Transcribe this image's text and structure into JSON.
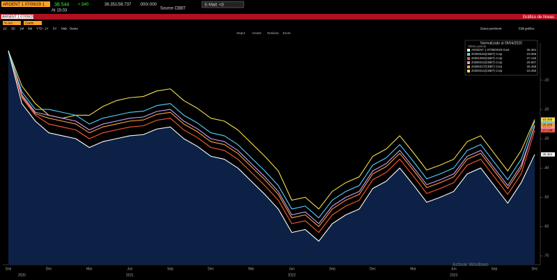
{
  "header": {
    "security": "ARGENT 1 07/09/29 1",
    "last": "38.544",
    "change": "+.540",
    "bid_ask": "38.351/38.737",
    "other": ".000/.000",
    "source": "Source CBBT",
    "time": "At 15:03",
    "email": "E-Mail: <3"
  },
  "title_bar": {
    "security": "ARGENT 1 07/09/29",
    "chart_kind": "Gráfico de líneas"
  },
  "toolbar": {
    "buttons": [
      "% Acc",
      "Camb"
    ],
    "periods": [
      "1D",
      "3D",
      "1M",
      "6M",
      "YTD",
      "1Y",
      "5Y",
      "Máx",
      "Diaria"
    ],
    "right": [
      "Datos pertinent",
      "Edit gráfico"
    ]
  },
  "chart_tools": [
    "Depur",
    "Anotar",
    "Noticias",
    "Zoom"
  ],
  "chart_data": {
    "type": "line",
    "legend_title": "Normalizado al 09/04/2020",
    "legend_subtitle": "Último precio",
    "categories": [
      "Sep",
      null,
      null,
      "Dec",
      null,
      null,
      "Mar",
      null,
      null,
      "Jun",
      null,
      null,
      "Sep",
      null,
      null,
      "Dec",
      null,
      null,
      "Mar",
      null,
      null,
      "Jun",
      null,
      null,
      "Sep",
      null,
      null,
      "Dec",
      null,
      null,
      "Mar",
      null,
      null,
      "Jun",
      null,
      null,
      "Sep",
      null,
      null,
      "Dec"
    ],
    "year_categories": [
      null,
      "2020",
      null,
      null,
      null,
      null,
      null,
      null,
      null,
      "2021",
      null,
      null,
      null,
      null,
      null,
      null,
      null,
      null,
      null,
      null,
      null,
      "2022",
      null,
      null,
      null,
      null,
      null,
      null,
      null,
      null,
      null,
      null,
      null,
      "2023",
      null,
      null,
      null,
      null,
      null,
      null
    ],
    "ylim": [
      -73,
      2.6
    ],
    "yticks": [
      -10,
      -20,
      -30,
      -40,
      -50,
      -60,
      -70
    ],
    "grid": false,
    "series": [
      {
        "name": "ARGENT 1 07/09/2029 Govt",
        "color": "#ffffff",
        "values": [
          0,
          -18,
          -24,
          -28,
          -29,
          -30,
          -33,
          -31,
          -30,
          -29,
          -28.6,
          -26.7,
          -26,
          -30,
          -32.6,
          -36,
          -37,
          -40,
          -44.5,
          -49,
          -54,
          -62,
          -61,
          -65,
          -59,
          -56,
          -54,
          -47,
          -44.5,
          -40,
          -45.7,
          -51.7,
          -50,
          -48,
          -42,
          -40,
          -46,
          -52,
          -45,
          -35.364
        ]
      },
      {
        "name": "2029032S(CBBT) Corp",
        "color": "#4fd8ff",
        "values": [
          0,
          -14,
          -20,
          -20,
          -21,
          -22,
          -25,
          -23,
          -22,
          -21,
          -20.6,
          -18.7,
          -18,
          -22,
          -24.6,
          -28,
          -29,
          -32,
          -36.5,
          -41,
          -46,
          -54,
          -53,
          -57,
          -51,
          -48,
          -46,
          -39,
          -36.5,
          -32,
          -37.7,
          -43.7,
          -42,
          -40,
          -34,
          -32,
          -38,
          -44,
          -37,
          -23.969
        ]
      },
      {
        "name": "2030109S(CBBT) Corp",
        "color": "#ff5a36",
        "values": [
          0,
          -16,
          -22,
          -25,
          -26,
          -27,
          -30,
          -28,
          -27,
          -26,
          -25.6,
          -23.7,
          -23,
          -27,
          -29.6,
          -33,
          -34,
          -37,
          -41.5,
          -46,
          -51,
          -59,
          -58,
          -62,
          -56,
          -53,
          -51,
          -44,
          -41.5,
          -37,
          -42.7,
          -48.7,
          -47,
          -45,
          -39,
          -37,
          -43,
          -49,
          -42,
          -27.148
        ]
      },
      {
        "name": "2028031S(CBBT) Corp",
        "color": "#c9a0ff",
        "values": [
          0,
          -15,
          -21,
          -22,
          -23,
          -24,
          -27,
          -25,
          -24,
          -23,
          -22.6,
          -20.7,
          -20,
          -24,
          -26.6,
          -30,
          -31,
          -34,
          -38.5,
          -43,
          -48,
          -56,
          -55,
          -59,
          -53,
          -50,
          -48,
          -41,
          -38.5,
          -34,
          -39.7,
          -45.7,
          -44,
          -42,
          -36,
          -34,
          -40,
          -46,
          -39,
          -25.807
        ]
      },
      {
        "name": "2028031T(CBBT) Corp",
        "color": "#ffa040",
        "values": [
          0,
          -15.5,
          -21.5,
          -23,
          -24,
          -25,
          -28,
          -26,
          -25,
          -24,
          -23.6,
          -21.7,
          -21,
          -25,
          -27.6,
          -31,
          -32,
          -35,
          -39.5,
          -44,
          -49,
          -57,
          -56,
          -60,
          -54,
          -51,
          -49,
          -42,
          -39.5,
          -35,
          -40.7,
          -46.7,
          -45,
          -43,
          -37,
          -35,
          -41,
          -47,
          -40,
          -25.269
        ]
      },
      {
        "name": "2030031S(CBBT) Corp",
        "color": "#f5e050",
        "values": [
          0,
          -12,
          -18,
          -22,
          -23,
          -22,
          -22,
          -19,
          -17,
          -16,
          -15.6,
          -13.7,
          -13,
          -17,
          -19.6,
          -23,
          -24,
          -27,
          -31.5,
          -36,
          -41,
          -51,
          -50,
          -54,
          -48,
          -45,
          -43,
          -36,
          -33.5,
          -29,
          -34.7,
          -40.7,
          -39,
          -37,
          -31,
          -29,
          -35,
          -41,
          -34,
          -23.455
        ]
      }
    ]
  },
  "watermark": "Activar Windows"
}
